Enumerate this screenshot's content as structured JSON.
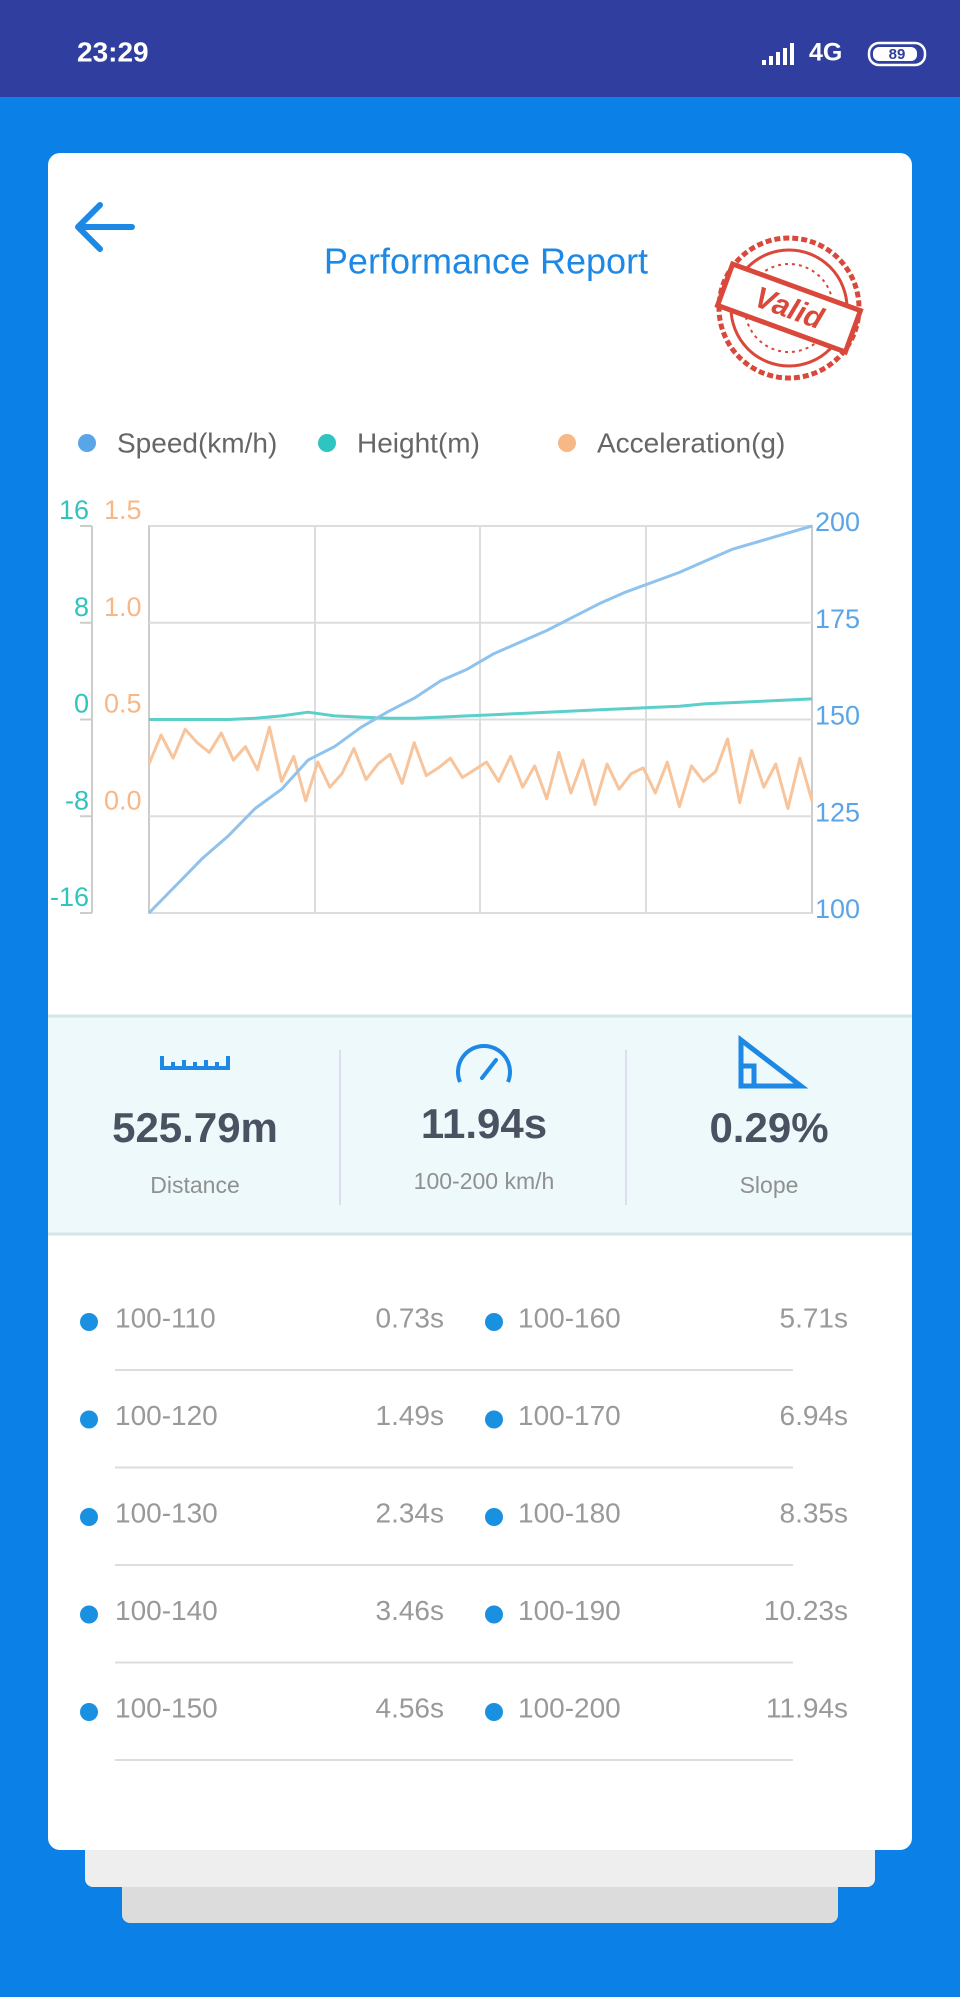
{
  "status_bar": {
    "time": "23:29",
    "network": "4G",
    "battery": "89"
  },
  "header": {
    "title": "Performance Report",
    "stamp": "Valid"
  },
  "chart_data": {
    "type": "line",
    "series": [
      {
        "name": "Speed(km/h)",
        "color": "#5aa5e8",
        "line_color": "#8fc3ee",
        "axis": "y2",
        "values": [
          100,
          107,
          114,
          120,
          127,
          132,
          139.5,
          143,
          148,
          152,
          155.5,
          160,
          163,
          167,
          170,
          173,
          176.5,
          180,
          183,
          185.5,
          188,
          191,
          194,
          196,
          198,
          200
        ]
      },
      {
        "name": "Height(m)",
        "color": "#2ec4c0",
        "line_color": "#5ccfcb",
        "axis": "y",
        "values": [
          0,
          0,
          0,
          0,
          0.1,
          0.3,
          0.6,
          0.3,
          0.2,
          0.1,
          0.1,
          0.2,
          0.3,
          0.4,
          0.5,
          0.6,
          0.7,
          0.8,
          0.9,
          1.0,
          1.1,
          1.3,
          1.4,
          1.5,
          1.6,
          1.7
        ]
      },
      {
        "name": "Acceleration(g)",
        "color": "#f7b786",
        "line_color": "#f8c49b",
        "axis": "y3",
        "values": [
          0.27,
          0.42,
          0.3,
          0.45,
          0.38,
          0.33,
          0.43,
          0.29,
          0.36,
          0.24,
          0.46,
          0.18,
          0.31,
          0.08,
          0.28,
          0.15,
          0.22,
          0.35,
          0.19,
          0.27,
          0.32,
          0.17,
          0.38,
          0.21,
          0.25,
          0.3,
          0.2,
          0.24,
          0.28,
          0.18,
          0.31,
          0.15,
          0.26,
          0.09,
          0.33,
          0.12,
          0.29,
          0.06,
          0.27,
          0.14,
          0.22,
          0.25,
          0.12,
          0.28,
          0.05,
          0.26,
          0.18,
          0.23,
          0.4,
          0.07,
          0.34,
          0.15,
          0.27,
          0.04,
          0.3,
          0.08
        ]
      }
    ],
    "ylim": [
      -16,
      16
    ],
    "yticks": [
      -16,
      -8,
      0,
      8,
      16
    ],
    "y3lim": [
      -0.5,
      1.5
    ],
    "y3ticks": [
      {
        "value": 0,
        "label": "0.0"
      },
      0.5,
      {
        "value": 1,
        "label": "1.0"
      },
      1.5
    ],
    "y2lim": [
      100,
      200
    ],
    "y2ticks": [
      100,
      125,
      150,
      175,
      200
    ],
    "grid": true
  },
  "stats": [
    {
      "value": "525.79m",
      "label": "Distance"
    },
    {
      "value": "11.94s",
      "label": "100-200 km/h"
    },
    {
      "value": "0.29%",
      "label": "Slope"
    }
  ],
  "splits": [
    {
      "label": "100-110",
      "time": "0.73s"
    },
    {
      "label": "100-120",
      "time": "1.49s"
    },
    {
      "label": "100-130",
      "time": "2.34s"
    },
    {
      "label": "100-140",
      "time": "3.46s"
    },
    {
      "label": "100-150",
      "time": "4.56s"
    },
    {
      "label": "100-160",
      "time": "5.71s"
    },
    {
      "label": "100-170",
      "time": "6.94s"
    },
    {
      "label": "100-180",
      "time": "8.35s"
    },
    {
      "label": "100-190",
      "time": "10.23s"
    },
    {
      "label": "100-200",
      "time": "11.94s"
    }
  ]
}
